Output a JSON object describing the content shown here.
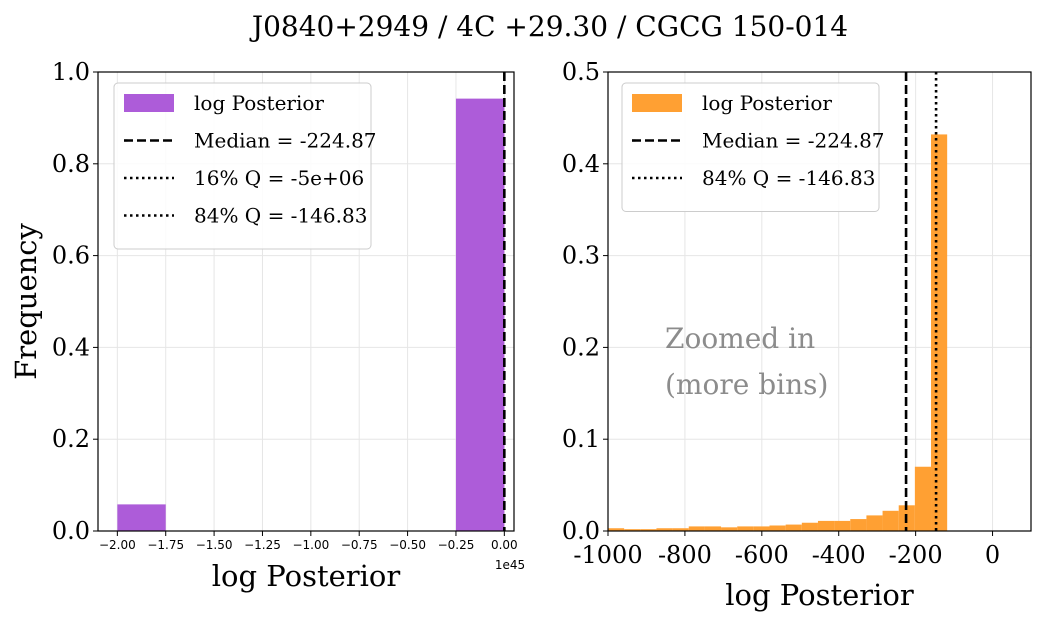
{
  "title": "J0840+2949 / 4C +29.30 / CGCG 150-014",
  "colors": {
    "left": "#ad5cd9",
    "right": "#ffa033",
    "grid": "#e6e6e6",
    "annot": "#8c8c8c"
  },
  "chart_data": [
    {
      "type": "bar",
      "xlabel": "log Posterior",
      "ylabel": "Frequency",
      "x_offset_label": "1e45",
      "xlim": [
        -2.1,
        0.05
      ],
      "ylim": [
        0,
        1.0
      ],
      "grid": true,
      "xticks": [
        -2.0,
        -1.75,
        -1.5,
        -1.25,
        -1.0,
        -0.75,
        -0.5,
        -0.25,
        0.0
      ],
      "xtick_labels": [
        "−2.00",
        "−1.75",
        "−1.50",
        "−1.25",
        "−1.00",
        "−0.75",
        "−0.50",
        "−0.25",
        "0.00"
      ],
      "yticks": [
        0.0,
        0.2,
        0.4,
        0.6,
        0.8,
        1.0
      ],
      "ytick_labels": [
        "0.0",
        "0.2",
        "0.4",
        "0.6",
        "0.8",
        "1.0"
      ],
      "bins": [
        {
          "x0": -2.0,
          "x1": -1.75,
          "value": 0.058
        },
        {
          "x0": -0.25,
          "x1": 0.0,
          "value": 0.942
        }
      ],
      "lines": [
        {
          "x": 0.0,
          "style": "dashed"
        }
      ],
      "legend": {
        "position": "upper-left",
        "entries": [
          {
            "kind": "patch",
            "label": "log Posterior"
          },
          {
            "kind": "dashed",
            "label": "Median = -224.87"
          },
          {
            "kind": "dotted",
            "label": "16% Q = -5e+06"
          },
          {
            "kind": "dotted",
            "label": "84% Q = -146.83"
          }
        ]
      }
    },
    {
      "type": "bar",
      "xlabel": "log Posterior",
      "ylabel": "",
      "xlim": [
        -1000,
        100
      ],
      "ylim": [
        0,
        0.5
      ],
      "grid": true,
      "xticks": [
        -1000,
        -800,
        -600,
        -400,
        -200,
        0
      ],
      "xtick_labels": [
        "-1000",
        "-800",
        "-600",
        "-400",
        "-200",
        "0"
      ],
      "yticks": [
        0.0,
        0.1,
        0.2,
        0.3,
        0.4,
        0.5
      ],
      "ytick_labels": [
        "0.0",
        "0.1",
        "0.2",
        "0.3",
        "0.4",
        "0.5"
      ],
      "bin_start": -1000,
      "bin_width": 42,
      "values": [
        0.003,
        0.002,
        0.002,
        0.003,
        0.003,
        0.005,
        0.005,
        0.004,
        0.005,
        0.005,
        0.006,
        0.007,
        0.009,
        0.011,
        0.011,
        0.013,
        0.017,
        0.022,
        0.028,
        0.07,
        0.432
      ],
      "lines": [
        {
          "x": -224.87,
          "style": "dashed"
        },
        {
          "x": -146.83,
          "style": "dotted"
        }
      ],
      "annotation": [
        "Zoomed in",
        "(more bins)"
      ],
      "legend": {
        "position": "upper-left",
        "entries": [
          {
            "kind": "patch",
            "label": "log Posterior"
          },
          {
            "kind": "dashed",
            "label": "Median = -224.87"
          },
          {
            "kind": "dotted",
            "label": "84% Q = -146.83"
          }
        ]
      }
    }
  ]
}
